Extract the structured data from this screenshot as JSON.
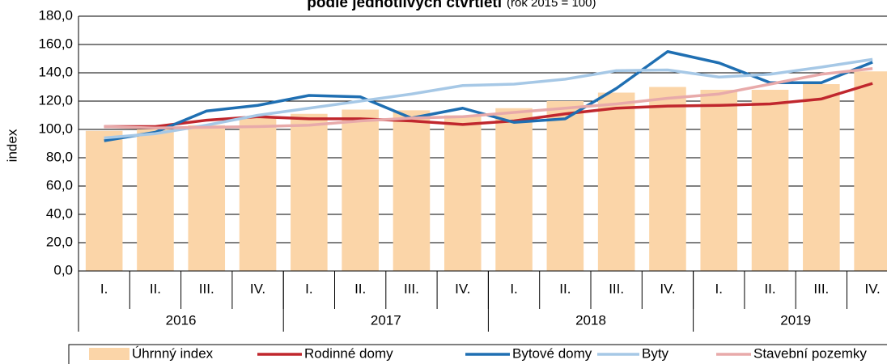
{
  "chart_data": {
    "type": "bar_line",
    "title": "podle jednotlivých čtvrtletí",
    "subtitle": "(rok 2015 = 100)",
    "ylabel": "index",
    "categories": [
      "I.",
      "II.",
      "III.",
      "IV.",
      "I.",
      "II.",
      "III.",
      "IV.",
      "I.",
      "II.",
      "III.",
      "IV.",
      "I.",
      "II.",
      "III.",
      "IV."
    ],
    "groups": [
      "2016",
      "2017",
      "2018",
      "2019"
    ],
    "ylim": [
      0,
      180
    ],
    "yticks": [
      {
        "value": 0,
        "label": "0,0"
      },
      {
        "value": 20,
        "label": "20,0"
      },
      {
        "value": 40,
        "label": "40,0"
      },
      {
        "value": 60,
        "label": "60,0"
      },
      {
        "value": 80,
        "label": "80,0"
      },
      {
        "value": 100,
        "label": "100,0"
      },
      {
        "value": 120,
        "label": "120,0"
      },
      {
        "value": 140,
        "label": "140,0"
      },
      {
        "value": 160,
        "label": "160,0"
      },
      {
        "value": 180,
        "label": "180,0"
      }
    ],
    "grid": true,
    "series": [
      {
        "name": "Úhrnný index",
        "kind": "bar",
        "color": "#fbd5a8",
        "values": [
          99,
          100,
          103,
          108,
          111,
          114,
          113.5,
          110,
          115,
          120,
          126,
          130,
          128,
          128,
          132,
          141
        ]
      },
      {
        "name": "Rodinné domy",
        "kind": "line",
        "color": "#c0272d",
        "values": [
          102,
          102,
          106.5,
          109,
          107.5,
          107.5,
          106,
          103.5,
          106,
          111,
          115,
          116.5,
          117,
          118,
          121.5,
          132.5
        ]
      },
      {
        "name": "Bytové domy",
        "kind": "line",
        "color": "#1f6fb2",
        "values": [
          92,
          98,
          113,
          117,
          124,
          123,
          108,
          115,
          105,
          107.5,
          129,
          155,
          147,
          133,
          133,
          147.5
        ]
      },
      {
        "name": "Byty",
        "kind": "line",
        "color": "#a6c8e6",
        "values": [
          94,
          97,
          103,
          110,
          115,
          120,
          125,
          131,
          132,
          135.5,
          141.5,
          142,
          137,
          139,
          144,
          149.5
        ]
      },
      {
        "name": "Stavební pozemky",
        "kind": "line",
        "color": "#e8aaaa",
        "values": [
          102,
          101,
          101.5,
          102,
          103,
          106,
          108,
          109,
          112,
          115,
          118,
          122,
          125,
          132,
          139,
          143
        ]
      }
    ]
  }
}
